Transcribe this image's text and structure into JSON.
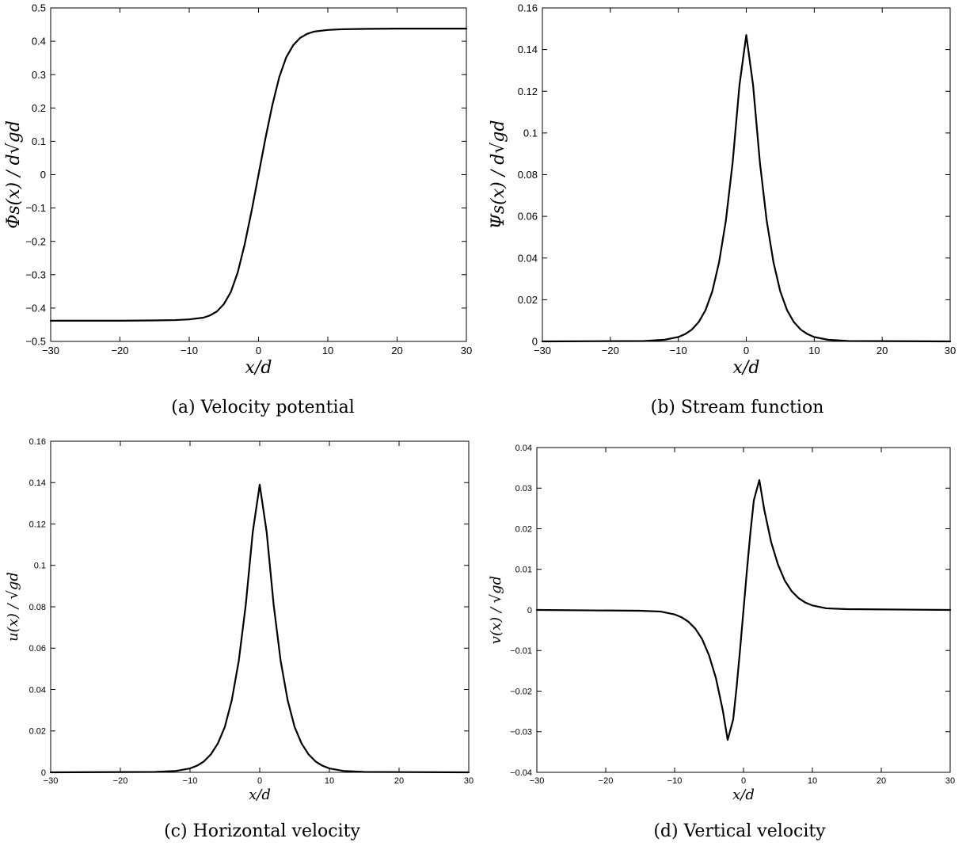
{
  "chart_data": [
    {
      "type": "line",
      "caption": "(a)  Velocity potential",
      "xlabel": "x/d",
      "ylabel": "Φs(x) / d√gd",
      "xlim": [
        -30,
        30
      ],
      "ylim": [
        -0.5,
        0.5
      ],
      "xticks": [
        -30,
        -20,
        -10,
        0,
        10,
        20,
        30
      ],
      "xtick_labels": [
        "−30",
        "−20",
        "−10",
        "0",
        "10",
        "20",
        "30"
      ],
      "yticks": [
        -0.5,
        -0.4,
        -0.3,
        -0.2,
        -0.1,
        0,
        0.1,
        0.2,
        0.3,
        0.4,
        0.5
      ],
      "ytick_labels": [
        "−0.5",
        "−0.4",
        "−0.3",
        "−0.2",
        "−0.1",
        "0",
        "0.1",
        "0.2",
        "0.3",
        "0.4",
        "0.5"
      ],
      "grid": false,
      "series": [
        {
          "x": [
            -30,
            -20,
            -15,
            -12,
            -10,
            -8,
            -7,
            -6,
            -5,
            -4,
            -3,
            -2,
            -1,
            0,
            1,
            2,
            3,
            4,
            5,
            6,
            7,
            8,
            10,
            12,
            15,
            20,
            30
          ],
          "values": [
            -0.438,
            -0.438,
            -0.437,
            -0.436,
            -0.434,
            -0.429,
            -0.422,
            -0.41,
            -0.388,
            -0.352,
            -0.293,
            -0.209,
            -0.109,
            0,
            0.109,
            0.209,
            0.293,
            0.352,
            0.388,
            0.41,
            0.422,
            0.429,
            0.434,
            0.436,
            0.437,
            0.438,
            0.438
          ]
        }
      ]
    },
    {
      "type": "line",
      "caption": "(b)  Stream function",
      "xlabel": "x/d",
      "ylabel": "Ψs(x) / d√gd",
      "xlim": [
        -30,
        30
      ],
      "ylim": [
        0,
        0.16
      ],
      "xticks": [
        -30,
        -20,
        -10,
        0,
        10,
        20,
        30
      ],
      "xtick_labels": [
        "−30",
        "−20",
        "−10",
        "0",
        "10",
        "20",
        "30"
      ],
      "yticks": [
        0,
        0.02,
        0.04,
        0.06,
        0.08,
        0.1,
        0.12,
        0.14,
        0.16
      ],
      "ytick_labels": [
        "0",
        "0.02",
        "0.04",
        "0.06",
        "0.08",
        "0.1",
        "0.12",
        "0.14",
        "0.16"
      ],
      "grid": false,
      "series": [
        {
          "x": [
            -30,
            -15,
            -12,
            -10,
            -9,
            -8,
            -7,
            -6,
            -5,
            -4,
            -3,
            -2,
            -1,
            0,
            1,
            2,
            3,
            4,
            5,
            6,
            7,
            8,
            9,
            10,
            12,
            15,
            30
          ],
          "values": [
            0,
            0.0002,
            0.0008,
            0.0021,
            0.0035,
            0.0057,
            0.0093,
            0.015,
            0.024,
            0.038,
            0.058,
            0.086,
            0.123,
            0.147,
            0.123,
            0.086,
            0.058,
            0.038,
            0.024,
            0.015,
            0.0093,
            0.0057,
            0.0035,
            0.0021,
            0.0008,
            0.0002,
            0
          ]
        }
      ]
    },
    {
      "type": "line",
      "caption": "(c)  Horizontal velocity",
      "xlabel": "x/d",
      "ylabel": "u(x) / √gd",
      "xlim": [
        -30,
        30
      ],
      "ylim": [
        0,
        0.16
      ],
      "xticks": [
        -30,
        -20,
        -10,
        0,
        10,
        20,
        30
      ],
      "xtick_labels": [
        "−30",
        "−20",
        "−10",
        "0",
        "10",
        "20",
        "30"
      ],
      "yticks": [
        0,
        0.02,
        0.04,
        0.06,
        0.08,
        0.1,
        0.12,
        0.14,
        0.16
      ],
      "ytick_labels": [
        "0",
        "0.02",
        "0.04",
        "0.06",
        "0.08",
        "0.1",
        "0.12",
        "0.14",
        "0.16"
      ],
      "grid": false,
      "series": [
        {
          "x": [
            -30,
            -15,
            -12,
            -10,
            -9,
            -8,
            -7,
            -6,
            -5,
            -4,
            -3,
            -2,
            -1,
            0,
            1,
            2,
            3,
            4,
            5,
            6,
            7,
            8,
            9,
            10,
            12,
            15,
            30
          ],
          "values": [
            0,
            0.0002,
            0.0007,
            0.0019,
            0.0032,
            0.0053,
            0.0087,
            0.014,
            0.022,
            0.035,
            0.054,
            0.081,
            0.116,
            0.139,
            0.116,
            0.081,
            0.054,
            0.035,
            0.022,
            0.014,
            0.0087,
            0.0053,
            0.0032,
            0.0019,
            0.0007,
            0.0002,
            0
          ]
        }
      ]
    },
    {
      "type": "line",
      "caption": "(d)  Vertical velocity",
      "xlabel": "x/d",
      "ylabel": "v(x) / √gd",
      "xlim": [
        -30,
        30
      ],
      "ylim": [
        -0.04,
        0.04
      ],
      "xticks": [
        -30,
        -20,
        -10,
        0,
        10,
        20,
        30
      ],
      "xtick_labels": [
        "−30",
        "−20",
        "−10",
        "0",
        "10",
        "20",
        "30"
      ],
      "yticks": [
        -0.04,
        -0.03,
        -0.02,
        -0.01,
        0,
        0.01,
        0.02,
        0.03,
        0.04
      ],
      "ytick_labels": [
        "−0.04",
        "−0.03",
        "−0.02",
        "−0.01",
        "0",
        "0.01",
        "0.02",
        "0.03",
        "0.04"
      ],
      "grid": false,
      "series": [
        {
          "x": [
            -30,
            -15,
            -12,
            -10,
            -9,
            -8,
            -7,
            -6,
            -5,
            -4,
            -3,
            -2.3,
            -1.5,
            -1,
            -0.5,
            0,
            0.5,
            1,
            1.5,
            2.3,
            3,
            4,
            5,
            6,
            7,
            8,
            9,
            10,
            12,
            15,
            30
          ],
          "values": [
            0,
            -0.0002,
            -0.0004,
            -0.0011,
            -0.0018,
            -0.0029,
            -0.0046,
            -0.0072,
            -0.0112,
            -0.0168,
            -0.0248,
            -0.032,
            -0.027,
            -0.019,
            -0.0098,
            0,
            0.0098,
            0.019,
            0.027,
            0.032,
            0.0248,
            0.0168,
            0.0112,
            0.0072,
            0.0046,
            0.0029,
            0.0018,
            0.0011,
            0.0004,
            0.0002,
            0
          ]
        }
      ]
    }
  ]
}
